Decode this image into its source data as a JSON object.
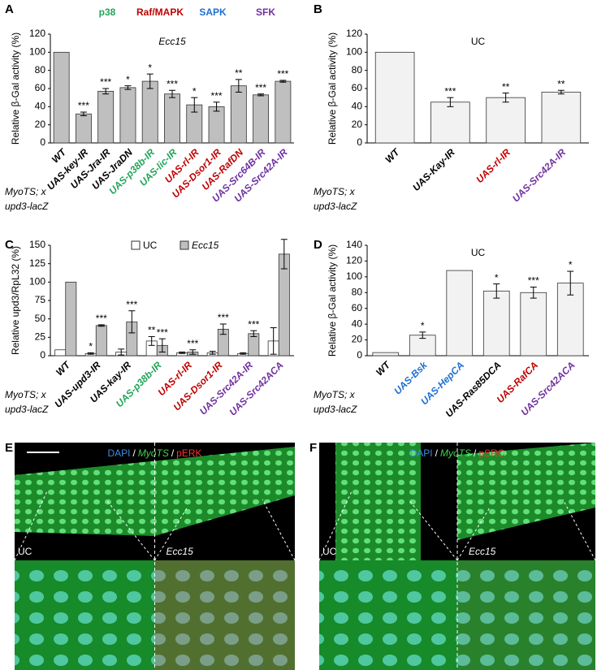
{
  "chart_data": [
    {
      "type": "bar",
      "panel": "A",
      "title": "Ecc15",
      "ylabel": "Relative β-Gal activity (%)",
      "groups": [
        {
          "name": "p38",
          "color": "#22a45a"
        },
        {
          "name": "Raf/MAPK",
          "color": "#c00000"
        },
        {
          "name": "SAPK",
          "color": "#1f6fd1"
        },
        {
          "name": "SFK",
          "color": "#7030a0"
        }
      ],
      "categories": [
        "WT",
        "UAS-key-IR",
        "UAS-Jra-IR",
        "UAS-JraDN",
        "UAS-p38b-IR",
        "UAS-lic-IR",
        "UAS-rl-IR",
        "UAS-Dsor1-IR",
        "UAS-RafDN",
        "UAS-Src64B-IR",
        "UAS-Src42A-IR"
      ],
      "category_colors": [
        "#000000",
        "#000000",
        "#000000",
        "#000000",
        "#22a45a",
        "#22a45a",
        "#c00000",
        "#c00000",
        "#c00000",
        "#7030a0",
        "#7030a0"
      ],
      "series": [
        {
          "color": "#bfbfbf",
          "values": [
            100,
            32,
            57,
            61,
            68,
            54,
            42,
            40,
            63,
            53,
            68
          ],
          "errors": [
            0,
            2,
            3,
            2,
            8,
            4,
            8,
            5,
            7,
            1,
            1
          ],
          "significance": [
            null,
            "***",
            "***",
            "*",
            "*",
            "***",
            "*",
            "***",
            "**",
            "***",
            "***"
          ]
        }
      ],
      "ylim": [
        0,
        120
      ],
      "yticks": [
        0,
        20,
        40,
        60,
        80,
        100,
        120
      ],
      "genotype": [
        "MyoTS; x",
        "upd3-lacZ"
      ]
    },
    {
      "type": "bar",
      "panel": "B",
      "title": "UC",
      "ylabel": "Relative β-Gal activity (%)",
      "categories": [
        "WT",
        "UAS-Kay-IR",
        "UAS-rl-IR",
        "UAS-Src42A-IR"
      ],
      "category_colors": [
        "#000000",
        "#000000",
        "#c00000",
        "#7030a0"
      ],
      "series": [
        {
          "color": "#f2f2f2",
          "values": [
            100,
            45,
            50,
            56
          ],
          "errors": [
            0,
            5,
            5,
            2
          ],
          "significance": [
            null,
            "***",
            "**",
            "**"
          ]
        }
      ],
      "ylim": [
        0,
        120
      ],
      "yticks": [
        0,
        20,
        40,
        60,
        80,
        100,
        120
      ],
      "genotype": [
        "MyoTS; x",
        "upd3-lacZ"
      ]
    },
    {
      "type": "bar",
      "panel": "C",
      "ylabel": "Relative upd3/RpL32 (%)",
      "categories": [
        "WT",
        "UAS-upd3-IR",
        "UAS-kay-IR",
        "UAS-p38b-IR",
        "UAS-rl-IR",
        "UAS-Dsor1-IR",
        "UAS-Src42A-IR",
        "UAS-Src42ACA"
      ],
      "category_colors": [
        "#000000",
        "#000000",
        "#000000",
        "#22a45a",
        "#c00000",
        "#c00000",
        "#7030a0",
        "#7030a0"
      ],
      "series": [
        {
          "name": "UC",
          "color": "#ffffff",
          "values": [
            8,
            3,
            5,
            20,
            4,
            4,
            3,
            20
          ],
          "errors": [
            0,
            1,
            4,
            6,
            1,
            2,
            1,
            18
          ],
          "significance": [
            null,
            "*",
            null,
            "**",
            null,
            null,
            null,
            null
          ]
        },
        {
          "name": "Ecc15",
          "color": "#bfbfbf",
          "values": [
            100,
            41,
            46,
            14,
            5,
            36,
            30,
            138
          ],
          "errors": [
            0,
            1,
            15,
            9,
            3,
            7,
            4,
            20
          ],
          "significance": [
            null,
            "***",
            "***",
            "***",
            "***",
            "***",
            "***",
            null
          ]
        }
      ],
      "ylim": [
        0,
        150
      ],
      "yticks": [
        0,
        25,
        50,
        75,
        100,
        125,
        150
      ],
      "genotype": [
        "MyoTS; x",
        "upd3-lacZ"
      ]
    },
    {
      "type": "bar",
      "panel": "D",
      "title": "UC",
      "ylabel": "Relative β-Gal activity (%)",
      "categories": [
        "WT",
        "UAS-Bsk",
        "UAS-HepCA",
        "UAS-Ras85DCA",
        "UAS-RafCA",
        "UAS-Src42ACA"
      ],
      "category_colors": [
        "#000000",
        "#1f6fd1",
        "#1f6fd1",
        "#000000",
        "#c00000",
        "#7030a0"
      ],
      "series": [
        {
          "color": "#f2f2f2",
          "values": [
            4,
            26,
            108,
            82,
            80,
            92
          ],
          "errors": [
            0,
            4,
            0,
            9,
            7,
            15
          ],
          "significance": [
            null,
            "*",
            null,
            "*",
            "***",
            "*"
          ]
        }
      ],
      "ylim": [
        0,
        140
      ],
      "yticks": [
        0,
        20,
        40,
        60,
        80,
        100,
        120,
        140
      ],
      "genotype": [
        "MyoTS; x",
        "upd3-lacZ"
      ]
    }
  ],
  "images": [
    {
      "panel": "E",
      "stains": [
        {
          "text": "DAPI",
          "color": "#3a8ee6"
        },
        {
          "text": "/",
          "color": "#ffffff"
        },
        {
          "text": "MyoTS",
          "color": "#3fd64f"
        },
        {
          "text": "/",
          "color": "#ffffff"
        },
        {
          "text": "pERK",
          "color": "#ff3030"
        }
      ],
      "labels": [
        "UC",
        "Ecc15"
      ]
    },
    {
      "panel": "F",
      "stains": [
        {
          "text": "DAPI",
          "color": "#3a8ee6"
        },
        {
          "text": "/",
          "color": "#ffffff"
        },
        {
          "text": "MyoTS",
          "color": "#3fd64f"
        },
        {
          "text": "/",
          "color": "#ffffff"
        },
        {
          "text": "pSRC",
          "color": "#ff3030"
        }
      ],
      "labels": [
        "UC",
        "Ecc15"
      ]
    }
  ]
}
